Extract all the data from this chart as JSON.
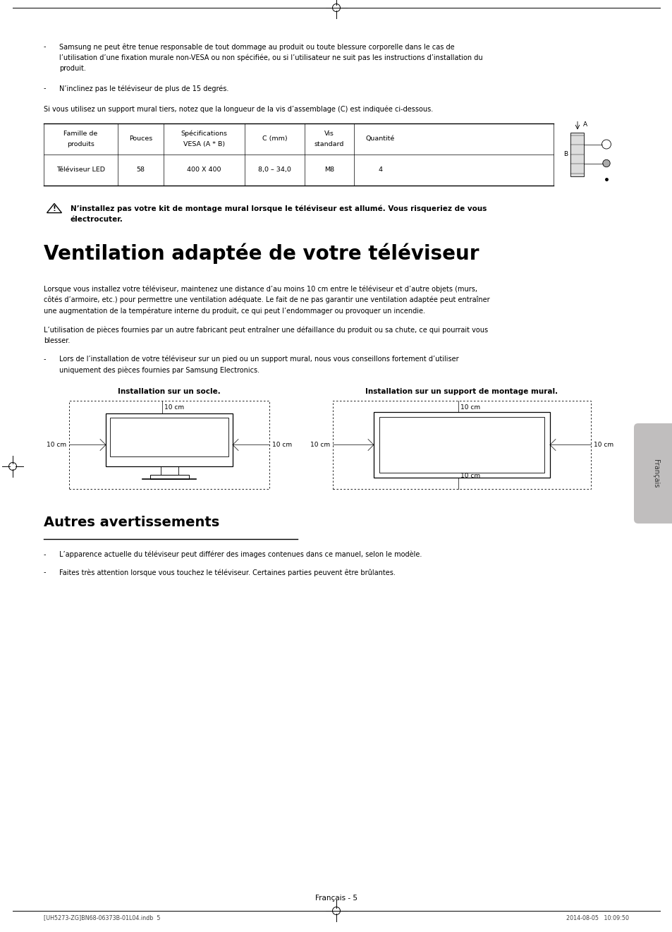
{
  "bg_color": "#ffffff",
  "page_width": 9.54,
  "page_height": 13.21,
  "lm": 0.62,
  "rm": 8.92,
  "bullet1_line1": "Samsung ne peut être tenue responsable de tout dommage au produit ou toute blessure corporelle dans le cas de",
  "bullet1_line2": "l’utilisation d’une fixation murale non-VESA ou non spécifiée, ou si l’utilisateur ne suit pas les instructions d’installation du",
  "bullet1_line3": "produit.",
  "bullet2": "N’inclinez pas le téléviseur de plus de 15 degrés.",
  "intro_text": "Si vous utilisez un support mural tiers, notez que la longueur de la vis d’assemblage (C) est indiquée ci-dessous.",
  "table_headers": [
    "Famille de\nproduits",
    "Pouces",
    "Spécifications\nVESA (A * B)",
    "C (mm)",
    "Vis\nstandard",
    "Quantité"
  ],
  "table_row": [
    "Téléviseur LED",
    "58",
    "400 X 400",
    "8,0 – 34,0",
    "M8",
    "4"
  ],
  "warning_line1": "N’installez pas votre kit de montage mural lorsque le téléviseur est allumé. Vous risqueriez de vous",
  "warning_line2": "électrocuter.",
  "section1_title": "Ventilation adaptée de votre téléviseur",
  "s1p1_l1": "Lorsque vous installez votre téléviseur, maintenez une distance d’au moins 10 cm entre le téléviseur et d’autre objets (murs,",
  "s1p1_l2": "côtés d’armoire, etc.) pour permettre une ventilation adéquate. Le fait de ne pas garantir une ventilation adaptée peut entraîner",
  "s1p1_l3": "une augmentation de la température interne du produit, ce qui peut l’endommager ou provoquer un incendie.",
  "s1p2_l1": "L’utilisation de pièces fournies par un autre fabricant peut entraîner une défaillance du produit ou sa chute, ce qui pourrait vous",
  "s1p2_l2": "blesser.",
  "s1b_l1": "Lors de l’installation de votre téléviseur sur un pied ou un support mural, nous vous conseillons fortement d’utiliser",
  "s1b_l2": "uniquement des pièces fournies par Samsung Electronics.",
  "diag1_title": "Installation sur un socle.",
  "diag2_title": "Installation sur un support de montage mural.",
  "label_10cm": "10 cm",
  "section2_title": "Autres avertissements",
  "s2b1": "L’apparence actuelle du téléviseur peut différer des images contenues dans ce manuel, selon le modèle.",
  "s2b2": "Faites très attention lorsque vous touchez le téléviseur. Certaines parties peuvent être brûlantes.",
  "footer_center": "Français - 5",
  "footer_left": "[UH5273-ZG]BN68-06373B-01L04.indb  5",
  "footer_right": "2014-08-05   10:09:50",
  "sidebar_text": "Français",
  "crosshair_color": "#000000",
  "line_color": "#000000",
  "text_fs": 7.0,
  "bold_fs": 7.5,
  "title1_fs": 20,
  "title2_fs": 14
}
